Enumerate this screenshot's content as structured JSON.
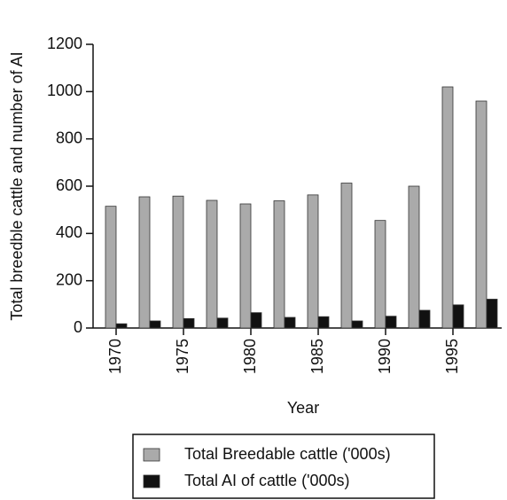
{
  "chart_data": {
    "type": "bar",
    "x_label": "Year",
    "y_label": "Total breedble cattle and number of AI",
    "categories": [
      "1970",
      null,
      "1975",
      null,
      "1980",
      null,
      "1985",
      null,
      "1990",
      null,
      "1995",
      null
    ],
    "series": [
      {
        "name": "Total Breedable cattle ('000s)",
        "color": "#aaaaaa",
        "values": [
          515,
          555,
          558,
          540,
          525,
          538,
          563,
          613,
          455,
          600,
          1020,
          960
        ]
      },
      {
        "name": "Total AI of cattle ('000s)",
        "color": "#111111",
        "values": [
          18,
          30,
          40,
          42,
          65,
          45,
          48,
          30,
          50,
          75,
          98,
          122
        ]
      }
    ],
    "ylim": [
      0,
      1200
    ],
    "yticks": [
      0,
      200,
      400,
      600,
      800,
      1000,
      1200
    ],
    "grid": false
  }
}
